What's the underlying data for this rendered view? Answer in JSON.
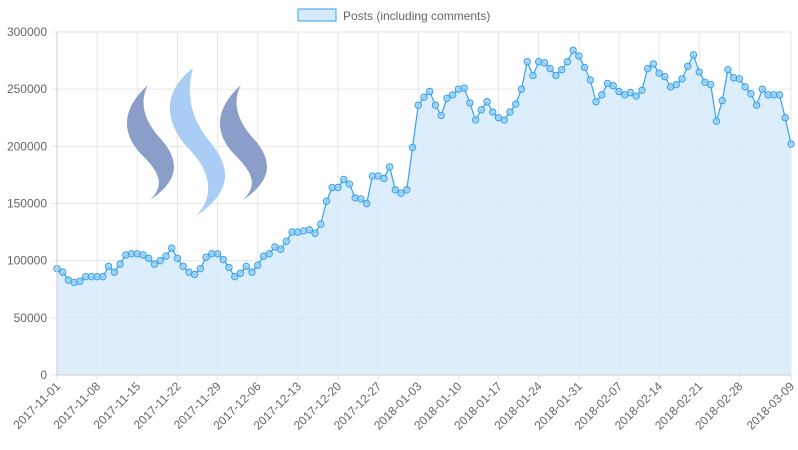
{
  "chart_data": {
    "type": "area",
    "legend": {
      "position": "top",
      "label": "Posts (including comments)"
    },
    "colors": {
      "line": "#36a2eb",
      "fill": "#d6ebfa",
      "point_fill": "#9fd0f5",
      "grid": "#e6e6e6"
    },
    "logo": {
      "name": "steem-logo-icon",
      "colors": [
        "#8b9ec9",
        "#a9cdf5",
        "#8b9ec9"
      ]
    },
    "grid": true,
    "ylim": [
      0,
      300000
    ],
    "yticks": [
      "0",
      "50000",
      "100000",
      "150000",
      "200000",
      "250000",
      "300000"
    ],
    "xlim": [
      "2017-11-01",
      "2018-03-09"
    ],
    "xticks": [
      "2017-11-01",
      "2017-11-08",
      "2017-11-15",
      "2017-11-22",
      "2017-11-29",
      "2017-12-06",
      "2017-12-13",
      "2017-12-20",
      "2017-12-27",
      "2018-01-03",
      "2018-01-10",
      "2018-01-17",
      "2018-01-24",
      "2018-01-31",
      "2018-02-07",
      "2018-02-14",
      "2018-02-21",
      "2018-02-28",
      "2018-03-09"
    ],
    "series": [
      {
        "name": "Posts (including comments)",
        "start_date": "2017-11-01",
        "values": [
          93000,
          90000,
          83000,
          81000,
          82000,
          86000,
          86000,
          86000,
          86000,
          95000,
          90000,
          97000,
          105000,
          106000,
          106000,
          105000,
          102000,
          97000,
          100000,
          104000,
          111000,
          102000,
          95000,
          90000,
          88000,
          93000,
          103000,
          106000,
          106000,
          101000,
          94000,
          86000,
          89000,
          95000,
          90000,
          96000,
          104000,
          106000,
          112000,
          110000,
          117000,
          125000,
          125000,
          126000,
          127000,
          124000,
          132000,
          152000,
          164000,
          164000,
          171000,
          167000,
          155000,
          154000,
          150000,
          174000,
          174000,
          172000,
          182000,
          162000,
          159000,
          162000,
          199000,
          236000,
          243000,
          248000,
          236000,
          227000,
          242000,
          245000,
          250000,
          251000,
          238000,
          223000,
          232000,
          239000,
          230000,
          225000,
          223000,
          230000,
          237000,
          250000,
          274000,
          262000,
          274000,
          273000,
          268000,
          262000,
          267000,
          274000,
          284000,
          279000,
          269000,
          258000,
          239000,
          245000,
          255000,
          253000,
          248000,
          245000,
          247000,
          244000,
          249000,
          268000,
          272000,
          264000,
          261000,
          252000,
          254000,
          259000,
          270000,
          280000,
          265000,
          256000,
          254000,
          222000,
          240000,
          267000,
          260000,
          259000,
          252000,
          246000,
          236000,
          250000,
          245000,
          245000,
          245000,
          225000,
          202000
        ]
      }
    ]
  }
}
